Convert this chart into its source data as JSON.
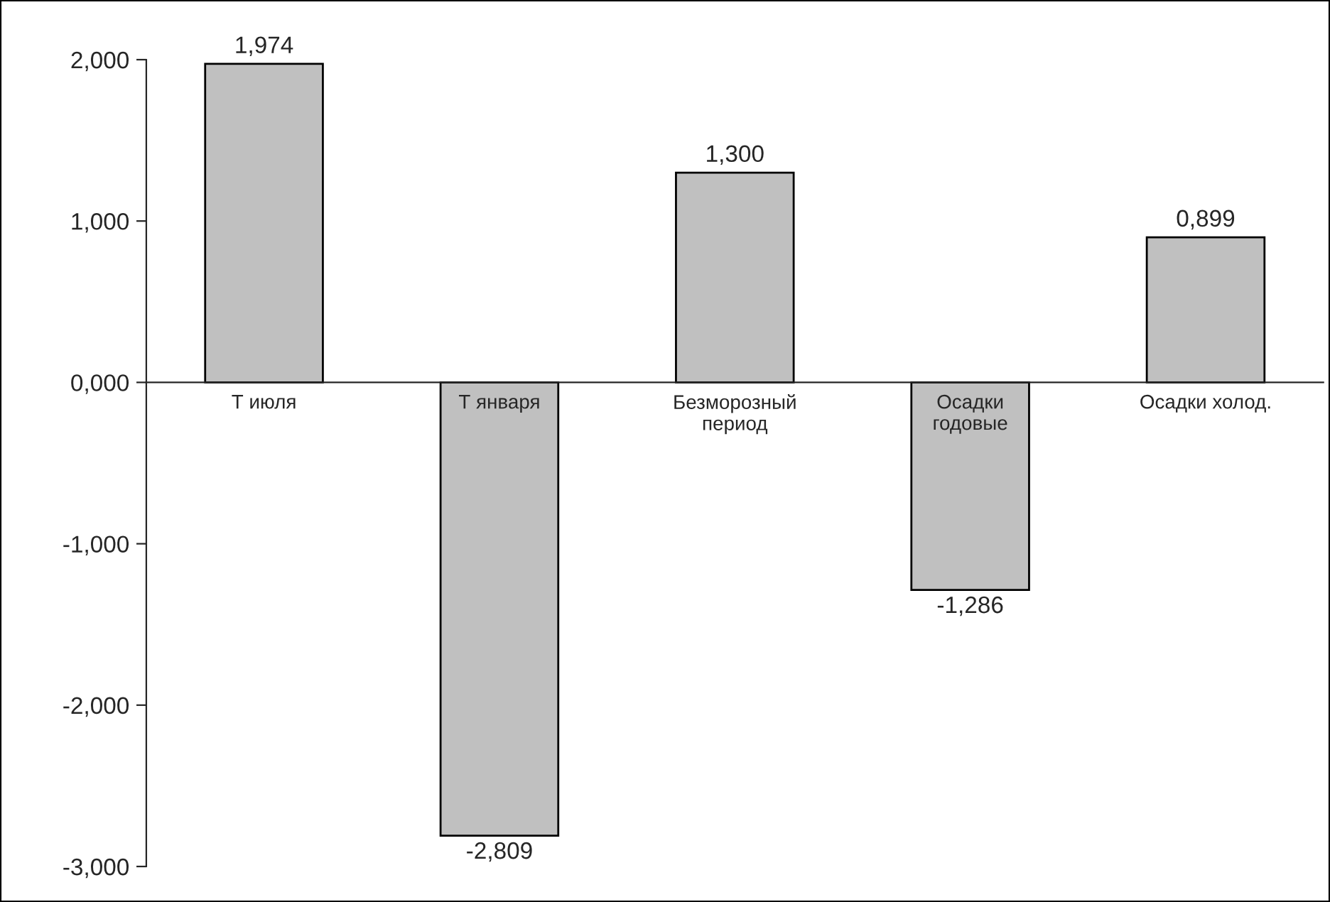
{
  "chart_data": {
    "type": "bar",
    "categories": [
      "Т июля",
      "Т января",
      "Безморозный\nпериод",
      "Осадки\nгодовые",
      "Осадки холод."
    ],
    "values": [
      1.974,
      -2.809,
      1.3,
      -1.286,
      0.899
    ],
    "value_labels": [
      "1,974",
      "-2,809",
      "1,300",
      "-1,286",
      "0,899"
    ],
    "color": "#c0c0c0",
    "ylim": [
      -3,
      2
    ],
    "yticks": [
      {
        "value": -3,
        "label": "-3,000"
      },
      {
        "value": -2,
        "label": "-2,000"
      },
      {
        "value": -1,
        "label": "-1,000"
      },
      {
        "value": 0,
        "label": "0,000"
      },
      {
        "value": 1,
        "label": "1,000"
      },
      {
        "value": 2,
        "label": "2,000"
      }
    ],
    "grid": false,
    "legend": false
  }
}
